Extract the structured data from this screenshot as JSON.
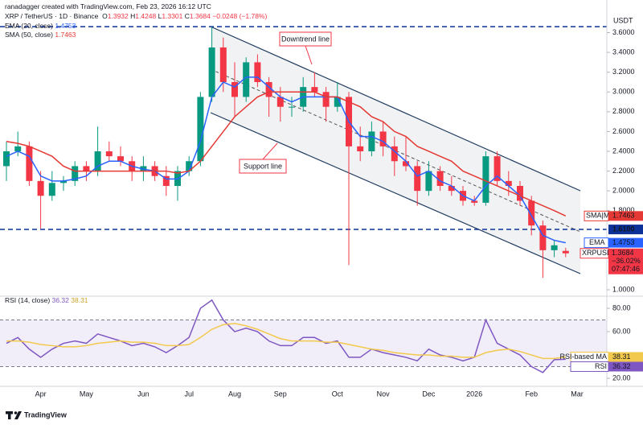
{
  "chart_data": [
    {
      "type": "candlestick",
      "source": "ranadagger created with TradingView.com, Feb 23, 2026 16:12 UTC",
      "title": "XRP / TetherUS · 1D · Binance",
      "ohlc_labels": [
        "O",
        "H",
        "L",
        "C"
      ],
      "change": "−0.0248 (−1.78%)",
      "axis_unit": "USDT",
      "symbol": "XRPUSDT",
      "change_percent": "−36.02%",
      "countdown": "07:47:46",
      "annotations": [
        "Downtrend line",
        "Support line"
      ],
      "categories": [
        null,
        null,
        null,
        "Apr",
        null,
        null,
        null,
        "May",
        null,
        null,
        null,
        null,
        "Jun",
        null,
        null,
        null,
        "Jul",
        null,
        null,
        null,
        "Aug",
        null,
        null,
        null,
        "Sep",
        null,
        null,
        null,
        null,
        "Oct",
        null,
        null,
        null,
        "Nov",
        null,
        null,
        null,
        "Dec",
        null,
        null,
        null,
        "2026",
        null,
        null,
        null,
        null,
        "Feb",
        null,
        null,
        null,
        "Mar"
      ],
      "open": [
        2.25,
        2.4,
        2.45,
        2.1,
        1.95,
        2.08,
        2.1,
        2.25,
        2.2,
        2.4,
        2.35,
        2.3,
        2.2,
        2.25,
        2.15,
        2.05,
        2.2,
        2.3,
        2.95,
        3.45,
        3.1,
        2.95,
        3.3,
        3.1,
        2.95,
        2.85,
        2.85,
        3.05,
        3.0,
        2.85,
        2.95,
        2.45,
        2.4,
        2.6,
        2.45,
        2.3,
        2.25,
        2.0,
        2.2,
        2.05,
        2.0,
        1.9,
        1.88,
        2.35,
        2.1,
        2.05,
        1.9,
        1.65,
        1.4,
        1.3932,
        null
      ],
      "high": [
        2.5,
        2.6,
        2.5,
        2.2,
        2.2,
        2.15,
        2.3,
        2.3,
        2.65,
        2.5,
        2.45,
        2.35,
        2.35,
        2.3,
        2.25,
        2.25,
        2.35,
        3.0,
        3.66,
        3.55,
        3.3,
        3.35,
        3.38,
        3.15,
        3.05,
        2.95,
        3.15,
        3.2,
        3.05,
        3.1,
        3.0,
        2.65,
        2.7,
        2.7,
        2.55,
        2.55,
        2.3,
        2.3,
        2.25,
        2.15,
        2.05,
        1.95,
        2.4,
        2.4,
        2.2,
        2.1,
        1.95,
        1.7,
        1.5,
        1.4248,
        null
      ],
      "low": [
        2.1,
        2.35,
        2.05,
        1.62,
        1.9,
        2.0,
        2.05,
        2.1,
        2.15,
        2.3,
        2.25,
        2.1,
        2.1,
        2.1,
        1.95,
        1.9,
        2.15,
        2.25,
        2.9,
        3.0,
        2.75,
        2.9,
        3.05,
        2.75,
        2.7,
        2.75,
        2.8,
        2.95,
        2.7,
        2.8,
        1.25,
        2.3,
        2.35,
        2.35,
        2.15,
        2.2,
        1.85,
        1.95,
        2.0,
        1.95,
        1.85,
        1.85,
        1.85,
        2.05,
        1.95,
        1.85,
        1.55,
        1.12,
        1.33,
        1.3301,
        null
      ],
      "close": [
        2.4,
        2.45,
        2.1,
        1.95,
        2.08,
        2.1,
        2.25,
        2.2,
        2.4,
        2.35,
        2.3,
        2.2,
        2.25,
        2.15,
        2.05,
        2.2,
        2.3,
        2.95,
        3.45,
        3.1,
        2.95,
        3.3,
        3.1,
        2.95,
        2.85,
        2.85,
        3.05,
        3.0,
        2.85,
        2.95,
        2.45,
        2.4,
        2.6,
        2.45,
        2.3,
        2.25,
        2.0,
        2.2,
        2.05,
        2.0,
        1.9,
        1.88,
        2.35,
        2.1,
        2.05,
        1.9,
        1.65,
        1.4,
        1.45,
        1.3684,
        null
      ],
      "up_color": "#089981",
      "down_color": "#f23645",
      "series": [
        {
          "name": "EMA (20, close)",
          "tag": "EMA",
          "color": "#2962ff",
          "values": [
            2.35,
            2.4,
            2.35,
            2.15,
            2.1,
            2.1,
            2.12,
            2.15,
            2.25,
            2.3,
            2.3,
            2.25,
            2.22,
            2.2,
            2.12,
            2.12,
            2.2,
            2.5,
            2.95,
            3.1,
            3.05,
            3.15,
            3.15,
            3.05,
            2.95,
            2.9,
            2.95,
            2.95,
            2.95,
            2.95,
            2.7,
            2.55,
            2.55,
            2.5,
            2.4,
            2.3,
            2.15,
            2.2,
            2.1,
            2.05,
            1.95,
            1.9,
            2.05,
            2.15,
            2.05,
            1.95,
            1.75,
            1.55,
            1.5,
            1.4753,
            null
          ]
        },
        {
          "name": "SMA (50, close)",
          "tag": "SMA|MA",
          "color": "#e53935",
          "values": [
            2.5,
            2.48,
            2.45,
            2.4,
            2.35,
            2.25,
            2.2,
            2.2,
            2.2,
            2.2,
            2.2,
            2.2,
            2.2,
            2.2,
            2.2,
            2.18,
            2.2,
            2.3,
            2.45,
            2.6,
            2.75,
            2.85,
            2.95,
            3.0,
            3.0,
            3.0,
            3.0,
            3.0,
            2.95,
            2.95,
            2.9,
            2.85,
            2.75,
            2.7,
            2.6,
            2.55,
            2.45,
            2.4,
            2.35,
            2.3,
            2.2,
            2.15,
            2.1,
            2.05,
            2.0,
            1.95,
            1.9,
            1.85,
            1.8,
            1.7463,
            null
          ]
        }
      ],
      "hlines": [
        {
          "value": 3.66,
          "color": "#0c3299"
        },
        {
          "value": 1.61,
          "label": "1.6100",
          "color": "#0c3299"
        }
      ],
      "ylim": [
        0.935,
        3.93
      ],
      "yticks": [
        {
          "value": 1.0,
          "label": "1.0000"
        },
        {
          "value": 1.8,
          "label": "1.8000"
        },
        {
          "value": 2.0,
          "label": "2.0000"
        },
        {
          "value": 2.2,
          "label": "2.2000"
        },
        {
          "value": 2.4,
          "label": "2.4000"
        },
        {
          "value": 2.6,
          "label": "2.6000"
        },
        {
          "value": 2.8,
          "label": "2.8000"
        },
        {
          "value": 3.0,
          "label": "3.0000"
        },
        {
          "value": 3.2,
          "label": "3.2000"
        },
        {
          "value": 3.4,
          "label": "3.4000"
        },
        {
          "value": 3.6,
          "label": "3.6000"
        }
      ]
    },
    {
      "type": "line",
      "title": "RSI (14, close)",
      "series": [
        {
          "name": "RSI",
          "color": "#7e57c2",
          "values": [
            50,
            55,
            45,
            38,
            45,
            50,
            52,
            50,
            58,
            55,
            52,
            48,
            50,
            47,
            42,
            48,
            55,
            80,
            87,
            70,
            60,
            63,
            60,
            52,
            48,
            48,
            55,
            55,
            50,
            52,
            38,
            38,
            45,
            42,
            40,
            38,
            35,
            45,
            40,
            38,
            35,
            38,
            70,
            50,
            45,
            40,
            30,
            25,
            36,
            36.32,
            null
          ]
        },
        {
          "name": "RSI-based MA",
          "color": "#f2c94c",
          "values": [
            52,
            52,
            51,
            49,
            48,
            47,
            47,
            48,
            50,
            51,
            52,
            51,
            51,
            50,
            48,
            48,
            49,
            55,
            62,
            66,
            67,
            65,
            62,
            58,
            54,
            52,
            52,
            52,
            51,
            51,
            49,
            47,
            45,
            44,
            42,
            41,
            40,
            40,
            39,
            39,
            38,
            38,
            42,
            44,
            45,
            43,
            40,
            37,
            37,
            38.31,
            null
          ]
        }
      ],
      "bands": [
        30,
        70
      ],
      "ylim": [
        14.5,
        89
      ],
      "yticks": [
        {
          "value": 20,
          "label": "20.00"
        },
        {
          "value": 60,
          "label": "60.00"
        },
        {
          "value": 80,
          "label": "80.00"
        }
      ]
    }
  ],
  "footer": {
    "brand": "TradingView"
  }
}
